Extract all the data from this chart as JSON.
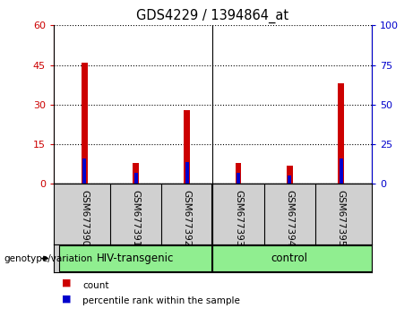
{
  "title": "GDS4229 / 1394864_at",
  "samples": [
    "GSM677390",
    "GSM677391",
    "GSM677392",
    "GSM677393",
    "GSM677394",
    "GSM677395"
  ],
  "count_values": [
    46,
    8,
    28,
    8,
    7,
    38
  ],
  "percentile_values": [
    16,
    7,
    14,
    7,
    5,
    16
  ],
  "ylim_left": [
    0,
    60
  ],
  "ylim_right": [
    0,
    100
  ],
  "yticks_left": [
    0,
    15,
    30,
    45,
    60
  ],
  "yticks_right": [
    0,
    25,
    50,
    75,
    100
  ],
  "ytick_labels_left": [
    "0",
    "15",
    "30",
    "45",
    "60"
  ],
  "ytick_labels_right": [
    "0",
    "25",
    "50",
    "75",
    "100"
  ],
  "count_color": "#cc0000",
  "percentile_color": "#0000cc",
  "plot_bg": "#ffffff",
  "label_area_bg": "#d0d0d0",
  "group_color": "#90ee90",
  "group1_label": "HIV-transgenic",
  "group2_label": "control",
  "genotype_label": "genotype/variation",
  "legend_count": "count",
  "legend_percentile": "percentile rank within the sample",
  "left_tick_color": "#cc0000",
  "right_tick_color": "#0000cc",
  "bar_width": 0.12,
  "pct_bar_width": 0.07
}
